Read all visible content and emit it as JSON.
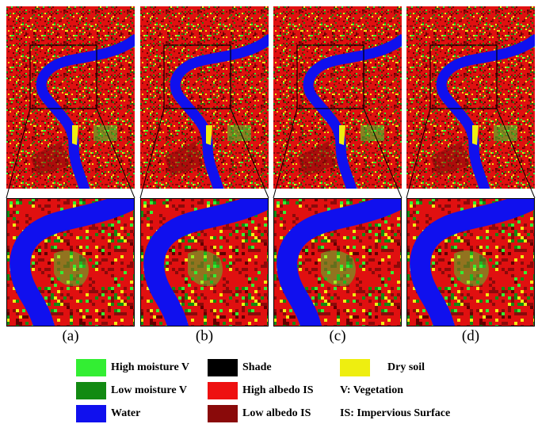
{
  "captions": [
    "(a)",
    "(b)",
    "(c)",
    "(d)"
  ],
  "legend": {
    "items": [
      {
        "label": "High moisture V",
        "color": "#33ee33"
      },
      {
        "label": "Low moisture V",
        "color": "#128a12"
      },
      {
        "label": "Water",
        "color": "#1010ee"
      },
      {
        "label": "Shade",
        "color": "#000000"
      },
      {
        "label": "High albedo IS",
        "color": "#ee1010"
      },
      {
        "label": "Low albedo IS",
        "color": "#8a0a0a"
      },
      {
        "label": "Dry soil",
        "color": "#eeee10"
      }
    ],
    "notes": [
      "V: Vegetation",
      "IS: Impervious Surface"
    ]
  }
}
